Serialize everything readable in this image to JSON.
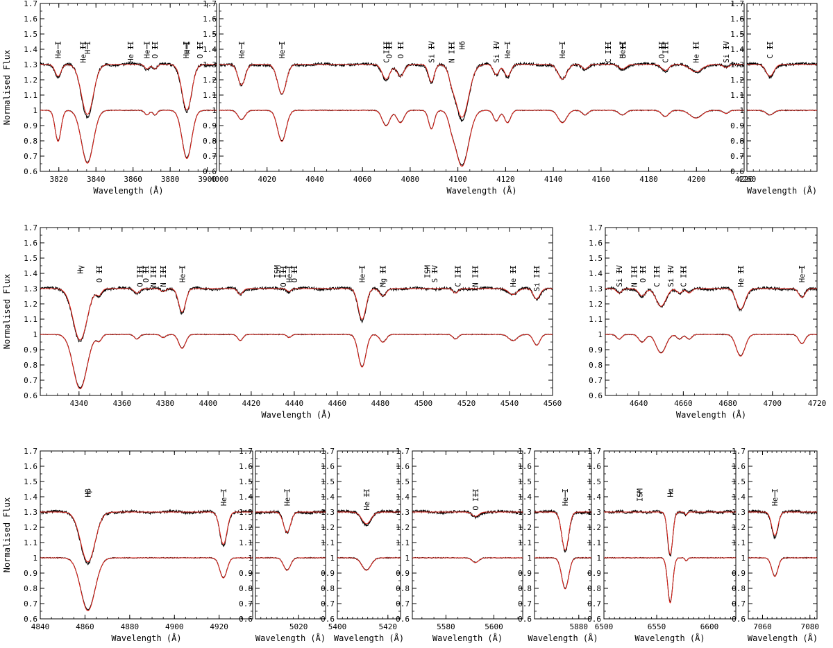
{
  "figure": {
    "ylabel": "Normalised Flux",
    "xlabel": "Wavelength (Å)"
  },
  "chart_data": [
    {
      "type": "line",
      "x_range": [
        3810,
        3905
      ],
      "ylim": [
        0.6,
        1.7
      ],
      "xticks": [
        3820,
        3840,
        3860,
        3880,
        3900
      ],
      "yticks": [
        0.6,
        0.7,
        0.8,
        0.9,
        1,
        1.1,
        1.2,
        1.3,
        1.4,
        1.5,
        1.6,
        1.7
      ],
      "lines": [
        {
          "wl": 3819.6,
          "d": 0.2,
          "w": 1.6,
          "t": 0.08
        },
        {
          "wl": 3835.4,
          "d": 0.34,
          "w": 3.2
        },
        {
          "wl": 3867.5,
          "d": 0.03,
          "w": 1.2
        },
        {
          "wl": 3871.8,
          "d": 0.03,
          "w": 1.2
        },
        {
          "wl": 3889.0,
          "d": 0.31,
          "w": 2.6
        }
      ],
      "labels": [
        {
          "wl": 3819.6,
          "text": "He I"
        },
        {
          "wl": 3833.0,
          "text": "He II"
        },
        {
          "wl": 3835.4,
          "text": "H I"
        },
        {
          "wl": 3858.7,
          "text": "He II"
        },
        {
          "wl": 3867.5,
          "text": "He I"
        },
        {
          "wl": 3871.8,
          "text": "O II"
        },
        {
          "wl": 3888.6,
          "text": "He I"
        },
        {
          "wl": 3889.1,
          "text": "H I"
        },
        {
          "wl": 3896.0,
          "text": "O II"
        }
      ]
    },
    {
      "type": "line",
      "x_range": [
        4000,
        4220
      ],
      "ylim": [
        0.6,
        1.7
      ],
      "xticks": [
        4000,
        4020,
        4040,
        4060,
        4080,
        4100,
        4120,
        4140,
        4160,
        4180,
        4200,
        4220
      ],
      "yticks": [
        0.6,
        0.7,
        0.8,
        0.9,
        1,
        1.1,
        1.2,
        1.3,
        1.4,
        1.5,
        1.6,
        1.7
      ],
      "lines": [
        {
          "wl": 4009.3,
          "d": 0.06,
          "w": 1.5,
          "t": 0.14
        },
        {
          "wl": 4026.2,
          "d": 0.2,
          "w": 1.8
        },
        {
          "wl": 4069.9,
          "d": 0.1,
          "w": 1.6
        },
        {
          "wl": 4075.9,
          "d": 0.08,
          "w": 1.5
        },
        {
          "wl": 4088.9,
          "d": 0.12,
          "w": 1.2
        },
        {
          "wl": 4097.3,
          "d": 0.05,
          "w": 1.2
        },
        {
          "wl": 4101.7,
          "d": 0.36,
          "w": 2.8
        },
        {
          "wl": 4116.1,
          "d": 0.07,
          "w": 1.2
        },
        {
          "wl": 4120.8,
          "d": 0.08,
          "w": 1.3
        },
        {
          "wl": 4143.8,
          "d": 0.08,
          "w": 1.8,
          "t": 0.1
        },
        {
          "wl": 4153.3,
          "d": 0.03,
          "w": 1.2
        },
        {
          "wl": 4169.0,
          "d": 0.03,
          "w": 1.5
        },
        {
          "wl": 4186.9,
          "d": 0.04,
          "w": 1.5
        },
        {
          "wl": 4199.8,
          "d": 0.05,
          "w": 2.5
        },
        {
          "wl": 4212.4,
          "d": 0.02,
          "w": 1.2
        }
      ],
      "labels": [
        {
          "wl": 4009.3,
          "text": "He I"
        },
        {
          "wl": 4026.2,
          "text": "He I"
        },
        {
          "wl": 4070.0,
          "text": "C III"
        },
        {
          "wl": 4071.2,
          "text": "O II"
        },
        {
          "wl": 4075.9,
          "text": "O II"
        },
        {
          "wl": 4088.9,
          "text": "Si IV"
        },
        {
          "wl": 4097.3,
          "text": "N III"
        },
        {
          "wl": 4101.7,
          "text": "Hδ"
        },
        {
          "wl": 4116.1,
          "text": "Si IV"
        },
        {
          "wl": 4120.8,
          "text": "He I"
        },
        {
          "wl": 4143.8,
          "text": "He I"
        },
        {
          "wl": 4162.9,
          "text": "C III"
        },
        {
          "wl": 4168.9,
          "text": "He I"
        },
        {
          "wl": 4169.2,
          "text": "O II"
        },
        {
          "wl": 4185.4,
          "text": "O II"
        },
        {
          "wl": 4186.9,
          "text": "C III"
        },
        {
          "wl": 4199.8,
          "text": "He II"
        },
        {
          "wl": 4212.4,
          "text": "Si IV"
        }
      ]
    },
    {
      "type": "line",
      "x_range": [
        4260,
        4282
      ],
      "ylim": [
        0.6,
        1.7
      ],
      "xticks": [
        4260
      ],
      "yticks": [
        0.6,
        0.7,
        0.8,
        0.9,
        1,
        1.1,
        1.2,
        1.3,
        1.4,
        1.5,
        1.6,
        1.7
      ],
      "lines": [
        {
          "wl": 4267.2,
          "d": 0.03,
          "w": 1.2,
          "t": 0.08
        }
      ],
      "labels": [
        {
          "wl": 4267.2,
          "text": "C II"
        }
      ]
    },
    {
      "type": "line",
      "x_range": [
        4322,
        4560
      ],
      "ylim": [
        0.6,
        1.7
      ],
      "xticks": [
        4340,
        4360,
        4380,
        4400,
        4420,
        4440,
        4460,
        4480,
        4500,
        4520,
        4540,
        4560
      ],
      "yticks": [
        0.6,
        0.7,
        0.8,
        0.9,
        1,
        1.1,
        1.2,
        1.3,
        1.4,
        1.5,
        1.6,
        1.7
      ],
      "lines": [
        {
          "wl": 4340.5,
          "d": 0.35,
          "w": 3.2
        },
        {
          "wl": 4349.4,
          "d": 0.04,
          "w": 1.2
        },
        {
          "wl": 4366.9,
          "d": 0.03,
          "w": 1.2
        },
        {
          "wl": 4379.1,
          "d": 0.02,
          "w": 1.2
        },
        {
          "wl": 4387.9,
          "d": 0.09,
          "w": 1.6,
          "t": 0.16
        },
        {
          "wl": 4414.9,
          "d": 0.04,
          "w": 1.2
        },
        {
          "wl": 4437.6,
          "d": 0.02,
          "w": 1.0
        },
        {
          "wl": 4471.5,
          "d": 0.21,
          "w": 1.8
        },
        {
          "wl": 4481.2,
          "d": 0.05,
          "w": 1.5
        },
        {
          "wl": 4514.9,
          "d": 0.03,
          "w": 1.2
        },
        {
          "wl": 4541.6,
          "d": 0.04,
          "w": 2.0
        },
        {
          "wl": 4552.6,
          "d": 0.07,
          "w": 1.5
        }
      ],
      "labels": [
        {
          "wl": 4340.5,
          "text": "Hγ"
        },
        {
          "wl": 4349.4,
          "text": "O II"
        },
        {
          "wl": 4368.2,
          "text": "O III"
        },
        {
          "wl": 4371.0,
          "text": "O II"
        },
        {
          "wl": 4374.5,
          "text": "N III"
        },
        {
          "wl": 4379.1,
          "text": "N III"
        },
        {
          "wl": 4387.9,
          "text": "He I"
        },
        {
          "wl": 4432.0,
          "text": "ISM"
        },
        {
          "wl": 4434.9,
          "text": "O III"
        },
        {
          "wl": 4437.6,
          "text": "He I"
        },
        {
          "wl": 4440.0,
          "text": "O II"
        },
        {
          "wl": 4471.5,
          "text": "He I"
        },
        {
          "wl": 4481.2,
          "text": "Mg II"
        },
        {
          "wl": 4501.8,
          "text": "ISM"
        },
        {
          "wl": 4505.2,
          "text": "S IV"
        },
        {
          "wl": 4516.0,
          "text": "C III"
        },
        {
          "wl": 4524.0,
          "text": "N III"
        },
        {
          "wl": 4541.6,
          "text": "He II"
        },
        {
          "wl": 4552.6,
          "text": "Si III"
        }
      ]
    },
    {
      "type": "line",
      "x_range": [
        4625,
        4720
      ],
      "ylim": [
        0.6,
        1.7
      ],
      "xticks": [
        4640,
        4660,
        4680,
        4700,
        4720
      ],
      "yticks": [
        0.6,
        0.7,
        0.8,
        0.9,
        1,
        1.1,
        1.2,
        1.3,
        1.4,
        1.5,
        1.6,
        1.7
      ],
      "lines": [
        {
          "wl": 4631.2,
          "d": 0.03,
          "w": 1.2
        },
        {
          "wl": 4641.5,
          "d": 0.05,
          "w": 1.5
        },
        {
          "wl": 4650.0,
          "d": 0.12,
          "w": 2.2
        },
        {
          "wl": 4658.3,
          "d": 0.03,
          "w": 1.2
        },
        {
          "wl": 4662.6,
          "d": 0.03,
          "w": 1.2
        },
        {
          "wl": 4685.7,
          "d": 0.14,
          "w": 2.0
        },
        {
          "wl": 4713.2,
          "d": 0.06,
          "w": 1.4
        }
      ],
      "labels": [
        {
          "wl": 4631.2,
          "text": "Si IV"
        },
        {
          "wl": 4638.0,
          "text": "N III"
        },
        {
          "wl": 4641.8,
          "text": "O II"
        },
        {
          "wl": 4648.0,
          "text": "C III"
        },
        {
          "wl": 4654.3,
          "text": "Si IV"
        },
        {
          "wl": 4660.0,
          "text": "C III"
        },
        {
          "wl": 4685.7,
          "text": "He II"
        },
        {
          "wl": 4713.2,
          "text": "He I"
        }
      ]
    },
    {
      "type": "line",
      "x_range": [
        4840,
        4935
      ],
      "ylim": [
        0.6,
        1.7
      ],
      "xticks": [
        4840,
        4860,
        4880,
        4900,
        4920
      ],
      "yticks": [
        0.6,
        0.7,
        0.8,
        0.9,
        1,
        1.1,
        1.2,
        1.3,
        1.4,
        1.5,
        1.6,
        1.7
      ],
      "lines": [
        {
          "wl": 4861.3,
          "d": 0.34,
          "w": 3.2
        },
        {
          "wl": 4921.9,
          "d": 0.13,
          "w": 1.6,
          "t": 0.22
        }
      ],
      "labels": [
        {
          "wl": 4861.3,
          "text": "Hβ"
        },
        {
          "wl": 4921.9,
          "text": "He I"
        }
      ]
    },
    {
      "type": "line",
      "x_range": [
        5004,
        5030
      ],
      "ylim": [
        0.6,
        1.7
      ],
      "xticks": [
        5020
      ],
      "yticks": [
        0.6,
        0.7,
        0.8,
        0.9,
        1,
        1.1,
        1.2,
        1.3,
        1.4,
        1.5,
        1.6,
        1.7
      ],
      "lines": [
        {
          "wl": 5015.7,
          "d": 0.08,
          "w": 1.3,
          "t": 0.14
        }
      ],
      "labels": [
        {
          "wl": 5015.7,
          "text": "He I"
        }
      ]
    },
    {
      "type": "line",
      "x_range": [
        5400,
        5425
      ],
      "ylim": [
        0.6,
        1.7
      ],
      "xticks": [
        5400,
        5420
      ],
      "yticks": [
        0.6,
        0.7,
        0.8,
        0.9,
        1,
        1.1,
        1.2,
        1.3,
        1.4,
        1.5,
        1.6,
        1.7
      ],
      "lines": [
        {
          "wl": 5411.5,
          "d": 0.08,
          "w": 1.8
        }
      ],
      "labels": [
        {
          "wl": 5411.5,
          "text": "He II"
        }
      ]
    },
    {
      "type": "line",
      "x_range": [
        5566,
        5612
      ],
      "ylim": [
        0.6,
        1.7
      ],
      "xticks": [
        5580,
        5600
      ],
      "yticks": [
        0.6,
        0.7,
        0.8,
        0.9,
        1,
        1.1,
        1.2,
        1.3,
        1.4,
        1.5,
        1.6,
        1.7
      ],
      "lines": [
        {
          "wl": 5592.3,
          "d": 0.03,
          "w": 1.4
        }
      ],
      "labels": [
        {
          "wl": 5592.3,
          "text": "O III"
        }
      ]
    },
    {
      "type": "line",
      "x_range": [
        5866,
        5884
      ],
      "ylim": [
        0.6,
        1.7
      ],
      "xticks": [
        5880
      ],
      "yticks": [
        0.6,
        0.7,
        0.8,
        0.9,
        1,
        1.1,
        1.2,
        1.3,
        1.4,
        1.5,
        1.6,
        1.7
      ],
      "lines": [
        {
          "wl": 5875.7,
          "d": 0.2,
          "w": 1.1,
          "t": 0.26
        }
      ],
      "labels": [
        {
          "wl": 5875.7,
          "text": "He I"
        }
      ]
    },
    {
      "type": "line",
      "x_range": [
        6500,
        6625
      ],
      "ylim": [
        0.6,
        1.7
      ],
      "xticks": [
        6500,
        6550,
        6600
      ],
      "yticks": [
        0.6,
        0.7,
        0.8,
        0.9,
        1,
        1.1,
        1.2,
        1.3,
        1.4,
        1.5,
        1.6,
        1.7
      ],
      "lines": [
        {
          "wl": 6562.8,
          "d": 0.29,
          "w": 2.4
        },
        {
          "wl": 6578.0,
          "d": 0.02,
          "w": 1.2
        }
      ],
      "labels": [
        {
          "wl": 6534.0,
          "text": "ISM"
        },
        {
          "wl": 6562.8,
          "text": "Hα"
        }
      ]
    },
    {
      "type": "line",
      "x_range": [
        7054,
        7083
      ],
      "ylim": [
        0.6,
        1.7
      ],
      "xticks": [
        7060,
        7080
      ],
      "yticks": [
        0.6,
        0.7,
        0.8,
        0.9,
        1,
        1.1,
        1.2,
        1.3,
        1.4,
        1.5,
        1.6,
        1.7
      ],
      "lines": [
        {
          "wl": 7065.2,
          "d": 0.12,
          "w": 1.3,
          "t": 0.16
        }
      ],
      "labels": [
        {
          "wl": 7065.2,
          "text": "He I"
        }
      ]
    }
  ]
}
